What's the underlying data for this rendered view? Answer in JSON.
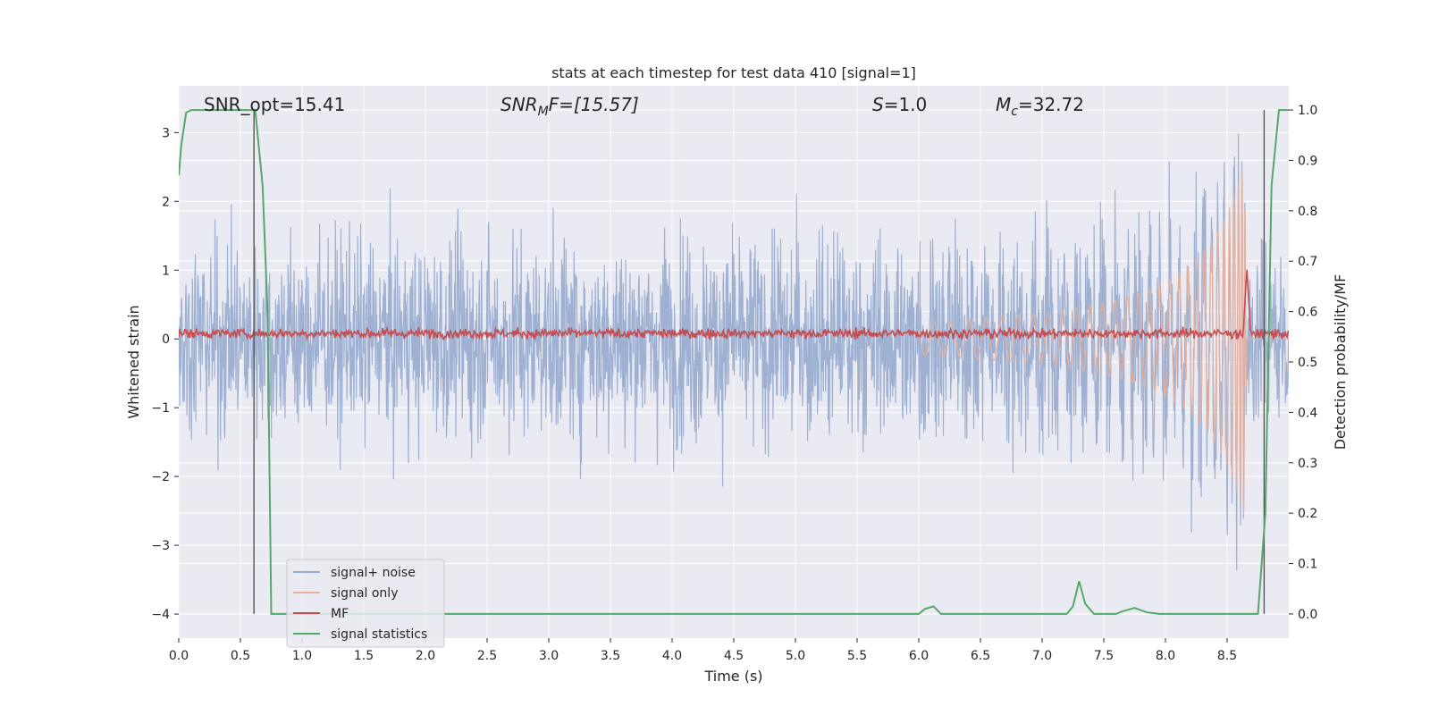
{
  "chart_data": {
    "type": "line",
    "title": "stats at each timestep for test data 410 [signal=1]",
    "xlabel": "Time (s)",
    "ylabel": "Whitened strain",
    "y2label": "Detection probability/MF",
    "xlim": [
      0.0,
      9.0
    ],
    "ylim": [
      -4.35,
      3.68
    ],
    "y2lim": [
      -0.048,
      1.048
    ],
    "xticks": [
      0.0,
      0.5,
      1.0,
      1.5,
      2.0,
      2.5,
      3.0,
      3.5,
      4.0,
      4.5,
      5.0,
      5.5,
      6.0,
      6.5,
      7.0,
      7.5,
      8.0,
      8.5
    ],
    "xtick_labels": [
      "0.0",
      "0.5",
      "1.0",
      "1.5",
      "2.0",
      "2.5",
      "3.0",
      "3.5",
      "4.0",
      "4.5",
      "5.0",
      "5.5",
      "6.0",
      "6.5",
      "7.0",
      "7.5",
      "8.0",
      "8.5"
    ],
    "yticks": [
      3,
      2,
      1,
      0,
      -1,
      -2,
      -3,
      -4
    ],
    "ytick_labels": [
      "3",
      "2",
      "1",
      "0",
      "−1",
      "−2",
      "−3",
      "−4"
    ],
    "y2ticks": [
      1.0,
      0.9,
      0.8,
      0.7,
      0.6,
      0.5,
      0.4,
      0.3,
      0.2,
      0.1,
      0.0
    ],
    "y2tick_labels": [
      "1.0",
      "0.9",
      "0.8",
      "0.7",
      "0.6",
      "0.5",
      "0.4",
      "0.3",
      "0.2",
      "0.1",
      "0.0"
    ],
    "grid": true,
    "legend_position": "lower-left",
    "annotations": {
      "snr_opt": "SNR_opt=15.41",
      "snr_mf_base": "SNR",
      "snr_mf_sub": "M",
      "snr_mf_tail": "F=[15.57]",
      "s_var": "S",
      "s_val": "=1.0",
      "mc_var": "M",
      "mc_sub": "c",
      "mc_val": "=32.72"
    },
    "vertical_lines_x": [
      0.61,
      8.8
    ],
    "series": [
      {
        "name": "signal+ noise",
        "color": "#9aaed1",
        "axis": "left"
      },
      {
        "name": "signal only",
        "color": "#e8b09b",
        "axis": "left"
      },
      {
        "name": "MF",
        "color": "#c44e52",
        "axis": "left"
      },
      {
        "name": "signal statistics",
        "color": "#55a868",
        "axis": "right",
        "x": [
          0.0,
          0.02,
          0.06,
          0.1,
          0.2,
          0.4,
          0.6,
          0.62,
          0.68,
          0.72,
          0.75,
          6.0,
          6.05,
          6.12,
          6.18,
          7.2,
          7.25,
          7.3,
          7.35,
          7.42,
          7.6,
          7.65,
          7.75,
          7.85,
          7.95,
          8.5,
          8.75,
          8.81,
          8.86,
          8.92,
          8.96,
          9.0
        ],
        "y": [
          0.87,
          0.93,
          0.995,
          1.0,
          1.0,
          1.0,
          1.0,
          1.0,
          0.85,
          0.6,
          0.0,
          0.0,
          0.01,
          0.015,
          0.0,
          0.0,
          0.015,
          0.065,
          0.02,
          0.0,
          0.0,
          0.005,
          0.012,
          0.003,
          0.0,
          0.0,
          0.0,
          0.2,
          0.85,
          1.0,
          1.0,
          1.0
        ]
      }
    ]
  }
}
